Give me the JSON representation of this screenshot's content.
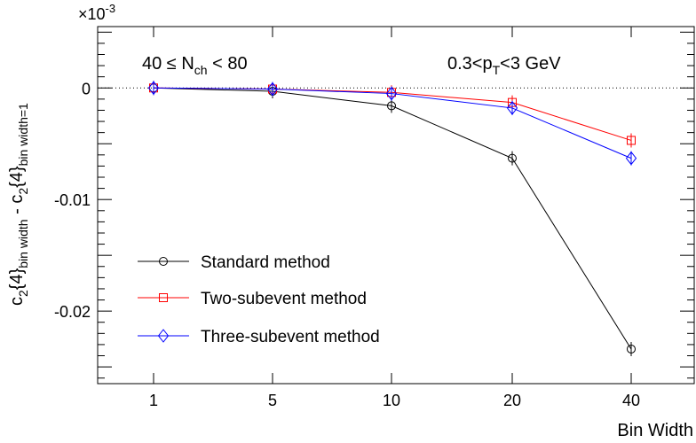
{
  "chart_data": {
    "type": "line",
    "categories": [
      "1",
      "5",
      "10",
      "20",
      "40"
    ],
    "xlabel": "Bin Width",
    "ylabel": {
      "base": "c",
      "sub1": "2",
      "mid": "{4}",
      "sub2": "bin width",
      "sep": " - ",
      "base2": "c",
      "sub3": "2",
      "mid2": "{4}",
      "sub4": "bin width=1"
    },
    "multiplier": "×10",
    "multiplier_exp": "-3",
    "ylim": [
      -0.0265,
      0.0055
    ],
    "y_ticks": [
      {
        "value": 0,
        "label": "0"
      },
      {
        "value": -0.01,
        "label": "-0.01"
      },
      {
        "value": -0.02,
        "label": "-0.02"
      }
    ],
    "annotations": {
      "left": {
        "prefix": "40 ≤ N",
        "sub": "ch",
        "suffix": " < 80"
      },
      "right": {
        "prefix": "0.3<p",
        "sub": "T",
        "suffix": "<3 GeV"
      }
    },
    "series": [
      {
        "name": "Standard method",
        "color": "#000000",
        "marker": "circle",
        "values": [
          0.0,
          -0.0003,
          -0.0016,
          -0.0063,
          -0.0234
        ]
      },
      {
        "name": "Two-subevent method",
        "color": "#ff0000",
        "marker": "square",
        "values": [
          0.0,
          -0.0001,
          -0.0004,
          -0.0013,
          -0.0047
        ]
      },
      {
        "name": "Three-subevent method",
        "color": "#0000ff",
        "marker": "diamond",
        "values": [
          0.0,
          -0.0001,
          -0.0005,
          -0.0018,
          -0.0063
        ]
      }
    ]
  }
}
